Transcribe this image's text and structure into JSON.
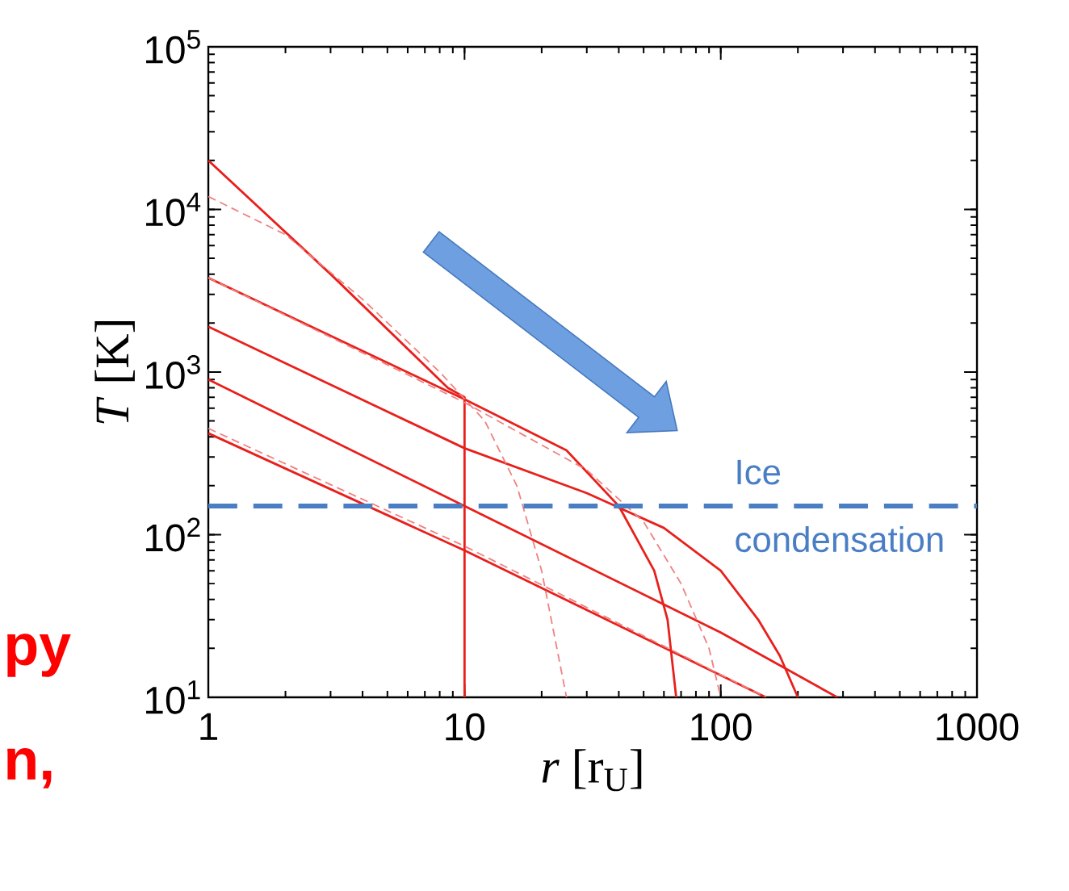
{
  "chart_data": {
    "type": "line",
    "xlabel": "*r* [r$_{U}$]",
    "ylabel": "*T* [K]",
    "log": "xy",
    "xlim": [
      1,
      1000
    ],
    "ylim": [
      10,
      100000
    ],
    "xticks": [
      1,
      10,
      100,
      1000
    ],
    "yticks": [
      {
        "value": 10,
        "label": "10$^{1}$"
      },
      {
        "value": 100,
        "label": "10$^{2}$"
      },
      {
        "value": 1000,
        "label": "10$^{3}$"
      },
      {
        "value": 10000,
        "label": "10$^{4}$"
      },
      {
        "value": 100000,
        "label": "10$^{5}$"
      }
    ],
    "grid": false,
    "marker": "none",
    "series": [
      {
        "color": "#e8201c",
        "line_style": "solid",
        "x": [
          1,
          3,
          8.6,
          10,
          10
        ],
        "values": [
          20000,
          4000,
          800,
          700,
          10
        ]
      },
      {
        "color": "#e8201c",
        "line_style": "solid",
        "x": [
          1,
          10,
          25,
          40,
          55,
          62,
          67
        ],
        "values": [
          3800,
          680,
          330,
          150,
          60,
          30,
          10
        ]
      },
      {
        "color": "#e8201c",
        "line_style": "solid",
        "x": [
          1,
          10,
          30,
          60,
          100,
          140,
          170,
          200
        ],
        "values": [
          1900,
          340,
          180,
          110,
          60,
          30,
          18,
          10
        ]
      },
      {
        "color": "#e8201c",
        "line_style": "solid",
        "x": [
          1,
          10,
          100,
          285
        ],
        "values": [
          900,
          150,
          25,
          10
        ]
      },
      {
        "color": "#e8201c",
        "line_style": "solid",
        "x": [
          1,
          10,
          150
        ],
        "values": [
          420,
          80,
          10
        ]
      },
      {
        "color": "#f08080",
        "line_style": "dashed",
        "x": [
          1,
          2,
          4,
          8,
          12,
          16,
          20,
          25
        ],
        "values": [
          12000,
          7000,
          2800,
          1000,
          500,
          200,
          60,
          10
        ]
      },
      {
        "color": "#f08080",
        "line_style": "dashed",
        "x": [
          1,
          10,
          30,
          50,
          70,
          90,
          100
        ],
        "values": [
          3800,
          650,
          250,
          120,
          50,
          20,
          10
        ]
      },
      {
        "color": "#f08080",
        "line_style": "dashed",
        "x": [
          1,
          10,
          150
        ],
        "values": [
          450,
          85,
          10
        ]
      }
    ],
    "ref_lines": [
      {
        "axis": "y",
        "value": 150,
        "label": "Ice condensation",
        "color": "#4a7ec4",
        "line_style": "dashed"
      }
    ],
    "annotations": [
      "py",
      "n,"
    ]
  }
}
